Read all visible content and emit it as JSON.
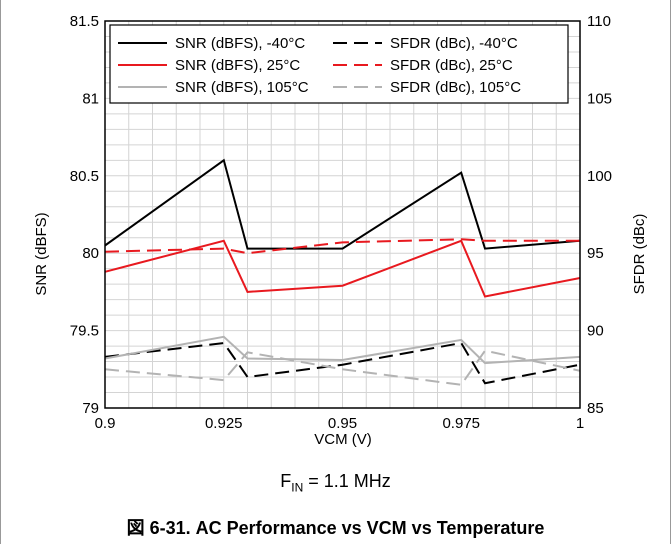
{
  "figure": {
    "note_prefix": "F",
    "note_subscript": "IN",
    "note_suffix": " = 1.1 MHz",
    "caption": "図 6-31. AC Performance vs VCM vs Temperature"
  },
  "chart_data": {
    "type": "line",
    "x": [
      0.9,
      0.925,
      0.93,
      0.95,
      0.975,
      0.98,
      1.0
    ],
    "xlabel": "VCM (V)",
    "ylabel": "SNR (dBFS)",
    "y2label": "SFDR (dBc)",
    "xlim": [
      0.9,
      1.0
    ],
    "ylim": [
      79,
      81.5
    ],
    "y2lim": [
      85,
      110
    ],
    "xticks": [
      "0.9",
      "0.925",
      "0.95",
      "0.975",
      "1"
    ],
    "yticks": [
      "79",
      "79.5",
      "80",
      "80.5",
      "81",
      "81.5"
    ],
    "y2ticks": [
      "85",
      "90",
      "95",
      "100",
      "105",
      "110"
    ],
    "grid": true,
    "legend_position": "top",
    "series": [
      {
        "name": "SNR (dBFS), -40°C",
        "axis": "left",
        "color": "#000000",
        "dash": "solid",
        "values": [
          80.05,
          80.6,
          80.03,
          80.03,
          80.52,
          80.03,
          80.08
        ]
      },
      {
        "name": "SFDR (dBc), -40°C",
        "axis": "right",
        "color": "#000000",
        "dash": "dashed",
        "values": [
          88.3,
          89.2,
          87.0,
          87.8,
          89.2,
          86.6,
          87.8
        ]
      },
      {
        "name": "SNR (dBFS), 25°C",
        "axis": "left",
        "color": "#e8191f",
        "dash": "solid",
        "values": [
          79.88,
          80.08,
          79.75,
          79.79,
          80.08,
          79.72,
          79.84
        ]
      },
      {
        "name": "SFDR (dBc), 25°C",
        "axis": "right",
        "color": "#e8191f",
        "dash": "dashed",
        "values": [
          95.1,
          95.3,
          95.0,
          95.7,
          95.9,
          95.8,
          95.8
        ]
      },
      {
        "name": "SNR (dBFS), 105°C",
        "axis": "left",
        "color": "#b3b3b3",
        "dash": "solid",
        "values": [
          79.32,
          79.46,
          79.32,
          79.31,
          79.44,
          79.29,
          79.33
        ]
      },
      {
        "name": "SFDR (dBc), 105°C",
        "axis": "right",
        "color": "#b3b3b3",
        "dash": "dashed",
        "values": [
          87.5,
          86.8,
          88.6,
          87.5,
          86.5,
          88.7,
          87.4
        ]
      }
    ]
  }
}
